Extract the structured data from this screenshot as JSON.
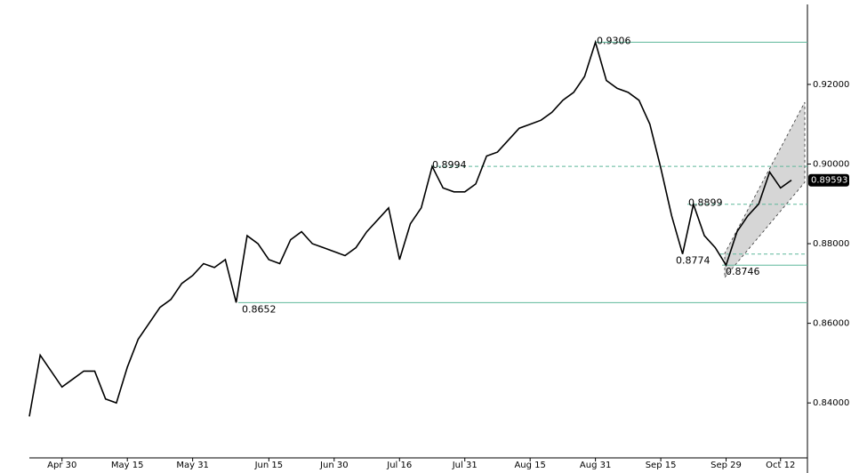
{
  "chart_data": {
    "type": "line",
    "color": "#000000",
    "level_color": "#5fb89b",
    "categories": [
      null,
      null,
      null,
      "Apr 30",
      null,
      null,
      null,
      null,
      null,
      "May 15",
      null,
      null,
      null,
      null,
      null,
      "May 31",
      null,
      null,
      null,
      null,
      null,
      null,
      "Jun 15",
      null,
      null,
      null,
      null,
      null,
      "Jun 30",
      null,
      null,
      null,
      null,
      null,
      "Jul 16",
      null,
      null,
      null,
      null,
      null,
      "Jul 31",
      null,
      null,
      null,
      null,
      null,
      "Aug 15",
      null,
      null,
      null,
      null,
      null,
      "Aug 31",
      null,
      null,
      null,
      null,
      null,
      "Sep 15",
      null,
      null,
      null,
      null,
      null,
      "Sep 29",
      null,
      null,
      null,
      null,
      "Oct 12",
      null
    ],
    "values": [
      0.8366,
      0.852,
      0.848,
      0.844,
      0.846,
      0.848,
      0.848,
      0.841,
      0.84,
      0.849,
      0.856,
      0.86,
      0.864,
      0.866,
      0.87,
      0.872,
      0.875,
      0.874,
      0.876,
      0.8652,
      0.882,
      0.88,
      0.876,
      0.875,
      0.881,
      0.883,
      0.88,
      0.879,
      0.878,
      0.877,
      0.879,
      0.883,
      0.886,
      0.889,
      0.876,
      0.885,
      0.889,
      0.8994,
      0.894,
      0.893,
      0.893,
      0.895,
      0.902,
      0.903,
      0.906,
      0.909,
      0.91,
      0.911,
      0.913,
      0.916,
      0.918,
      0.922,
      0.9306,
      0.921,
      0.919,
      0.918,
      0.916,
      0.91,
      0.899,
      0.887,
      0.8774,
      0.8899,
      0.882,
      0.879,
      0.8746,
      0.883,
      0.887,
      0.89,
      0.898,
      0.894,
      0.89593
    ],
    "ylim": [
      0.8224,
      0.9412
    ],
    "yticks": [
      {
        "value": 0.84,
        "label": "0.84000"
      },
      {
        "value": 0.86,
        "label": "0.86000"
      },
      {
        "value": 0.88,
        "label": "0.88000"
      },
      {
        "value": 0.9,
        "label": "0.90000"
      },
      {
        "value": 0.92,
        "label": "0.92000"
      }
    ],
    "levels": [
      {
        "value": 0.9306,
        "style": "solid"
      },
      {
        "value": 0.8994,
        "style": "dashed"
      },
      {
        "value": 0.8899,
        "style": "dashed"
      },
      {
        "value": 0.8774,
        "style": "dashed"
      },
      {
        "value": 0.8746,
        "style": "solid"
      },
      {
        "value": 0.8652,
        "style": "solid"
      }
    ]
  }
}
